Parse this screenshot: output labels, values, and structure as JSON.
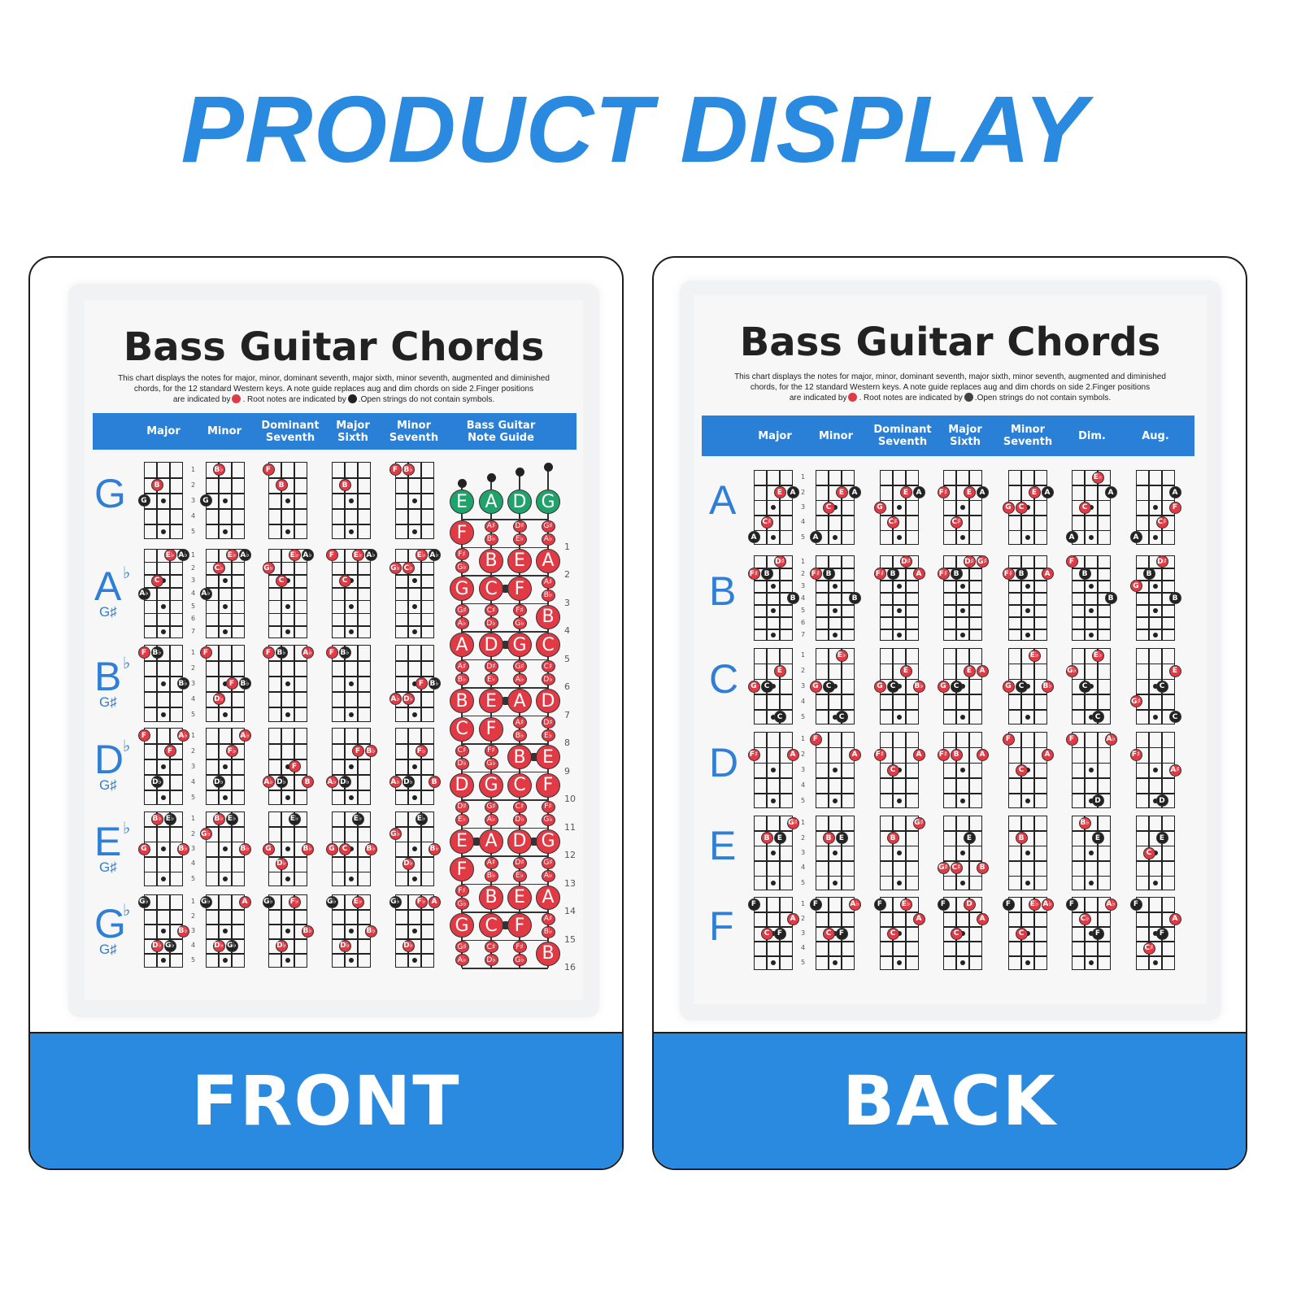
{
  "headline": "PRODUCT DISPLAY",
  "colors": {
    "brand_blue": "#2a8ae0",
    "finger_red": "#e23a45",
    "root_black": "#222222",
    "open_green": "#1fa36a"
  },
  "legend": {
    "finger_icon": "red-circle",
    "root_icon": "black-circle"
  },
  "front": {
    "label": "FRONT",
    "poster": {
      "title": "Bass Guitar Chords",
      "desc_line1": "This chart displays the notes for major, minor, dominant seventh, major sixth, minor seventh, augmented and diminished",
      "desc_line2": "chords, for the 12 standard Western keys. A note guide replaces aug and dim chords on side 2.Finger positions",
      "desc_line3a": "are indicated by",
      "desc_line3b": ". Root notes are indicated by",
      "desc_line3c": ".Open strings do not contain symbols.",
      "columns": [
        "Major",
        "Minor",
        "Dominant Seventh",
        "Major Sixth",
        "Minor Seventh",
        "Bass Guitar Note Guide"
      ],
      "rows": [
        {
          "key": "G",
          "acc": "",
          "alt": "",
          "frets": 5,
          "chords": [
            "0,3,G,r;1,2,B,f",
            "0,3,G,r;1,1,B♭,f",
            "0,1,F,f;1,2,B,f",
            "1,2,B,f",
            "0,1,F,f;1,1,B♭,f"
          ]
        },
        {
          "key": "A",
          "acc": "♭",
          "alt": "G♯",
          "frets": 7,
          "chords": [
            "0,4,A♭,r;1,3,C,f;2,1,E♭,f;3,1,A♭,r",
            "0,4,A♭,r;1,2,C♭,f;2,1,E♭,f;3,1,A♭,r",
            "0,2,G♭,f;1,3,C,f;2,1,E♭,f;3,1,A♭,r",
            "0,1,F,f;1,3,C,f;2,1,E♭,f;3,1,A♭,r",
            "0,2,G♭,f;1,2,C♭,f;2,1,E♭,f;3,1,A♭,r"
          ]
        },
        {
          "key": "B",
          "acc": "♭",
          "alt": "G♯",
          "frets": 5,
          "chords": [
            "0,1,F,f;1,1,B♭,r;3,3,B♭,r",
            "0,1,F,f;1,4,D♭,f;2,3,F,f;3,3,B♭,r",
            "0,1,F,f;1,1,B♭,r;3,1,A♭,f",
            "0,1,F,f;1,1,B♭,r",
            "0,4,A♭,f;1,4,D♭,f;2,3,F,f;3,3,B♭,r"
          ]
        },
        {
          "key": "D",
          "acc": "♭",
          "alt": "G♯",
          "frets": 5,
          "chords": [
            "0,1,F,f;3,1,A♭,f;2,2,F,f;1,4,D♭,r",
            "3,1,A♭,f;2,2,F♭,f;1,4,D♭,r",
            "2,3,F,f;0,4,A♭,f;1,4,D♭,r;3,4,B,f",
            "2,2,F,f;3,2,B♭,f;0,4,A♭,f;1,4,D♭,r",
            "2,2,F♭,f;0,4,A♭,f;1,4,D♭,r;3,4,B,f"
          ]
        },
        {
          "key": "E",
          "acc": "♭",
          "alt": "G♯",
          "frets": 5,
          "chords": [
            "1,1,B♭,f;2,1,E♭,r;0,3,G,f;3,3,B♭,f",
            "1,1,B♭,f;2,1,E♭,r;0,2,G♭,f;3,3,B♭,f",
            "2,1,E♭,r;0,3,G,f;1,4,D♭,f;3,3,B♭,f",
            "2,1,E♭,r;0,3,G,f;1,3,C,f;3,3,B♭,f",
            "2,1,E♭,r;0,2,G♭,f;1,4,D♭,f;3,3,B♭,f"
          ]
        },
        {
          "key": "G",
          "acc": "♭",
          "alt": "G♯",
          "frets": 5,
          "chords": [
            "0,1,G♭,r;3,3,B♭,f;1,4,D♭,f;2,4,G♭,r",
            "0,1,G♭,r;3,1,A,f;1,4,D♭,f;2,4,G♭,r",
            "0,1,G♭,r;2,1,F♭,f;3,3,B♭,f;1,4,D♭,f",
            "0,1,G♭,r;2,1,E♭,f;3,3,B♭,f;1,4,D♭,f",
            "0,1,G♭,r;2,1,F♭,f;3,1,A,f;1,4,D♭,f"
          ]
        }
      ],
      "note_guide": {
        "open_strings": [
          "E",
          "A",
          "D",
          "G"
        ],
        "fret_count": 16,
        "chromatic": [
          "C",
          [
            "C♯",
            "D♭"
          ],
          "D",
          [
            "D♯",
            "E♭"
          ],
          "E",
          "F",
          [
            "F♯",
            "G♭"
          ],
          "G",
          [
            "G♯",
            "A♭"
          ],
          "A",
          [
            "A♯",
            "B♭"
          ],
          "B"
        ]
      }
    }
  },
  "back": {
    "label": "BACK",
    "poster": {
      "title": "Bass Guitar Chords",
      "desc_line1": "This chart displays the notes for major, minor, dominant seventh, major sixth, minor seventh, augmented and diminished",
      "desc_line2": "chords, for the 12 standard Western keys. A note guide replaces aug and dim chords on side 2.Finger positions",
      "desc_line3a": "are indicated by",
      "desc_line3b": ". Root notes are indicated by",
      "desc_line3c": ".Open strings do not contain symbols.",
      "columns": [
        "Major",
        "Minor",
        "Dominant Seventh",
        "Major Sixth",
        "Minor Seventh",
        "Dim.",
        "Aug."
      ],
      "rows": [
        {
          "key": "A",
          "acc": "",
          "alt": "",
          "frets": 5,
          "chords": [
            "2,2,E,f;3,2,A,r;1,4,C♯,f;0,5,A,r",
            "2,2,E,f;3,2,A,r;1,3,C,f;0,5,A,r",
            "2,2,E,f;3,2,A,r;0,3,G,f;1,4,C♯,f",
            "0,2,F♯,f;2,2,E,f;3,2,A,r;1,4,C♯,f",
            "2,2,E,f;3,2,A,r;0,3,G,f;1,3,C,f",
            "2,1,E♭,f;3,2,A,r;1,3,C,f;0,5,A,r",
            "3,2,A,r;3,3,F,f;2,4,C♯,f;0,5,A,r"
          ]
        },
        {
          "key": "B",
          "acc": "",
          "alt": "",
          "frets": 7,
          "chords": [
            "2,1,D♯,f;0,2,F♯,f;1,2,B,r;3,4,B,r",
            "0,2,F♯,f;1,2,B,r;3,4,B,r",
            "2,1,D♯,f;0,2,F♯,f;1,2,B,r;3,2,A,f",
            "2,1,D♯,f;3,1,G♯,f;0,2,F♯,f;1,2,B,r",
            "0,2,F♯,f;1,2,B,r;3,2,A,f",
            "0,1,F,f;1,2,B,r;3,4,B,r",
            "2,1,D♯,f;1,2,B,r;0,3,G,f;3,4,B,r"
          ]
        },
        {
          "key": "C",
          "acc": "",
          "alt": "",
          "frets": 5,
          "chords": [
            "2,2,E,f;0,3,G,f;1,3,C,r;2,5,C,r",
            "2,1,E♭,f;0,3,G,f;1,3,C,r;2,5,C,r",
            "2,2,E,f;0,3,G,f;1,3,C,r;3,3,B♭,f",
            "2,2,E,f;3,2,A,f;0,3,G,f;1,3,C,r",
            "2,1,E♭,f;0,3,G,f;1,3,C,r;3,3,B♭,f",
            "2,1,E♭,f;0,2,G♭,f;1,3,C,r;2,5,C,r",
            "3,2,E,f;2,3,C,r;0,4,G♯,f;3,5,C,r"
          ]
        },
        {
          "key": "D",
          "acc": "",
          "alt": "",
          "frets": 5,
          "chords": [
            "0,2,F♯,f;3,2,A,f",
            "0,1,F,f;3,2,A,f",
            "0,2,F♯,f;1,3,C,f;3,2,A,f",
            "0,2,F♯,f;1,2,B,f;3,2,A,f",
            "0,1,F,f;1,3,C,f;3,2,A,f",
            "0,1,F,f;3,1,A♭,f;2,5,D,r",
            "0,2,F♯,f;3,3,A♯,f;2,5,D,r"
          ]
        },
        {
          "key": "E",
          "acc": "",
          "alt": "",
          "frets": 5,
          "chords": [
            "3,1,G♯,f;1,2,B,f;2,2,E,r",
            "1,2,B,f;2,2,E,r",
            "3,1,G♯,f;1,2,B,f",
            "2,2,E,r;0,4,G♯,f;1,4,C♯,f;3,4,B,f",
            "1,2,B,f",
            "1,1,B♭,f;2,2,E,r",
            "2,2,E,r;1,3,C,f"
          ]
        },
        {
          "key": "F",
          "acc": "",
          "alt": "",
          "frets": 5,
          "chords": [
            "0,1,F,r;3,2,A,f;1,3,C,f;2,3,F,r",
            "0,1,F,r;3,1,A♭,f;1,3,C,f;2,3,F,r",
            "0,1,F,r;2,1,E♭,f;3,2,A,f;1,3,C,f",
            "0,1,F,r;2,1,D,f;3,2,A,f;1,3,C,f",
            "0,1,F,r;2,1,E♭,f;3,1,A♭,f;1,3,C,f",
            "0,1,F,r;3,1,A♭,f;1,2,C♭,f;2,3,F,r",
            "0,1,F,r;3,2,A,f;2,3,F,r;1,4,C♯,f"
          ]
        }
      ]
    }
  }
}
